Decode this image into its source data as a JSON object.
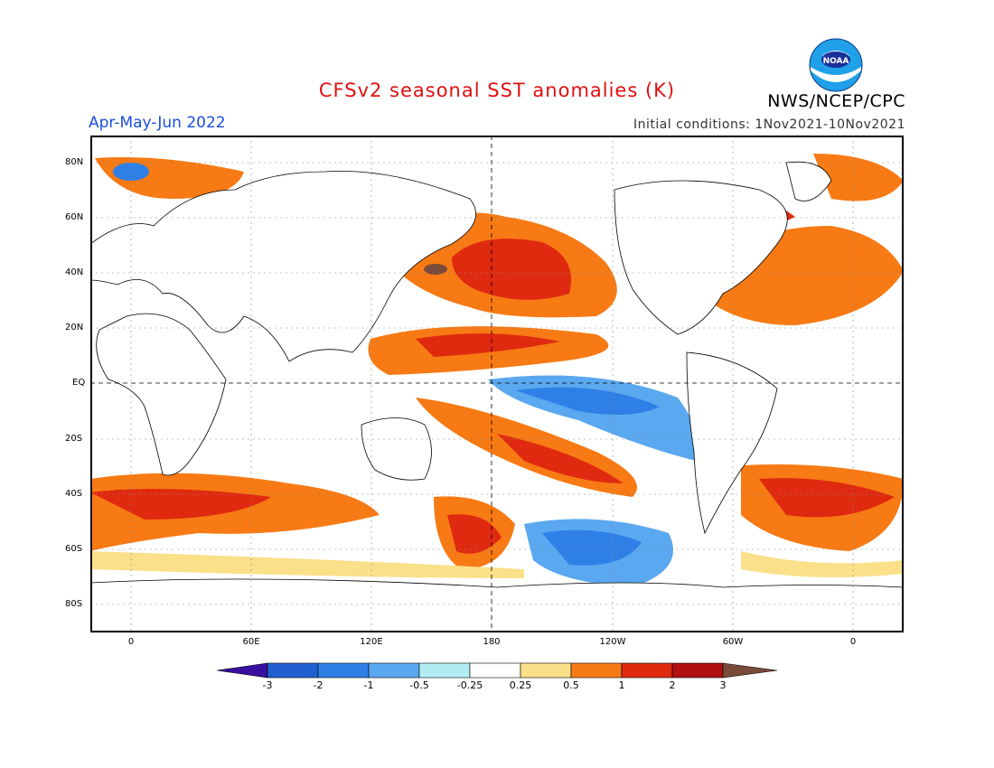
{
  "title": "CFSv2 seasonal SST anomalies (K)",
  "agency": "NWS/NCEP/CPC",
  "logo_text": "NOAA",
  "season": "Apr-May-Jun 2022",
  "initial_conditions": "Initial conditions: 1Nov2021-10Nov2021",
  "colors": {
    "title": "#e01010",
    "season": "#1a4de0",
    "frame": "#000000",
    "land_outline": "#000000"
  },
  "lat_ticks": [
    "80N",
    "60N",
    "40N",
    "20N",
    "EQ",
    "20S",
    "40S",
    "60S",
    "80S"
  ],
  "lon_ticks": [
    "0",
    "60E",
    "120E",
    "180",
    "120W",
    "60W",
    "0"
  ],
  "colorbar": {
    "labels": [
      "-3",
      "-2",
      "-1",
      "-0.5",
      "-0.25",
      "0.25",
      "0.5",
      "1",
      "2",
      "3"
    ],
    "colors": [
      "#3a0fa0",
      "#1f5fd0",
      "#2f80e6",
      "#5aa8f0",
      "#b4ecf4",
      "#ffffff",
      "#fbe08a",
      "#f77a14",
      "#e02a10",
      "#b01010",
      "#7a4a3a"
    ]
  }
}
